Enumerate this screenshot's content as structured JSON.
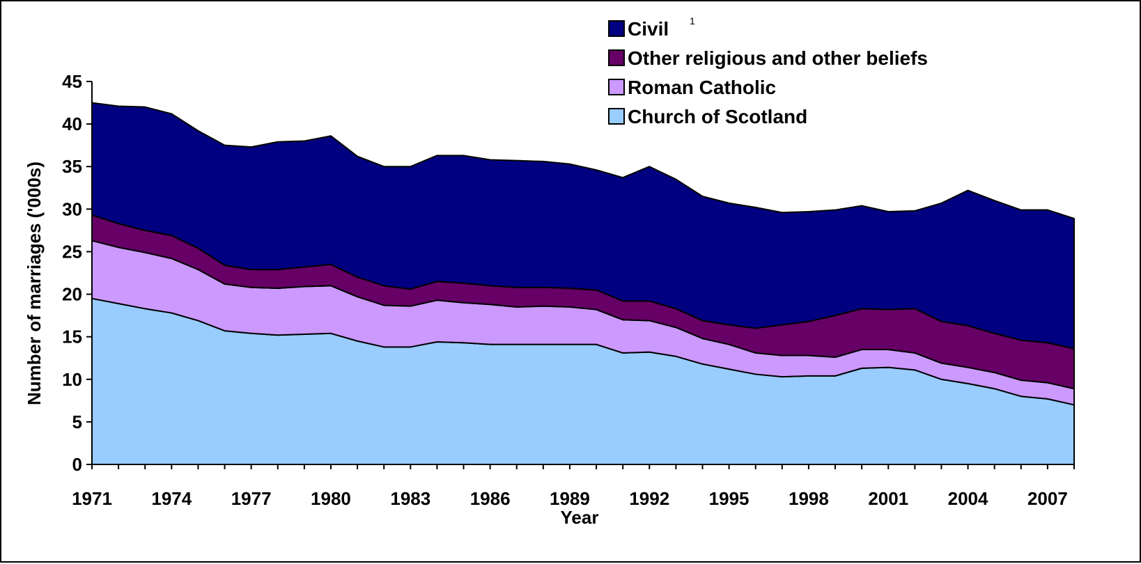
{
  "chart_data": {
    "type": "area",
    "stacked": true,
    "xlabel": "Year",
    "ylabel": "Number of marriages ('000s)",
    "ylim": [
      0,
      45
    ],
    "yticks": [
      0,
      5,
      10,
      15,
      20,
      25,
      30,
      35,
      40,
      45
    ],
    "xlim": [
      1971,
      2008
    ],
    "xtick_labels": [
      1971,
      1974,
      1977,
      1980,
      1983,
      1986,
      1989,
      1992,
      1995,
      1998,
      2001,
      2004,
      2007
    ],
    "legend_position": "top",
    "grid": false,
    "x": [
      1971,
      1972,
      1973,
      1974,
      1975,
      1976,
      1977,
      1978,
      1979,
      1980,
      1981,
      1982,
      1983,
      1984,
      1985,
      1986,
      1987,
      1988,
      1989,
      1990,
      1991,
      1992,
      1993,
      1994,
      1995,
      1996,
      1997,
      1998,
      1999,
      2000,
      2001,
      2002,
      2003,
      2004,
      2005,
      2006,
      2007,
      2008
    ],
    "series": [
      {
        "name": "Church of Scotland",
        "color": "#99ccff",
        "values": [
          19.5,
          18.9,
          18.3,
          17.8,
          16.9,
          15.7,
          15.4,
          15.2,
          15.3,
          15.4,
          14.5,
          13.8,
          13.8,
          14.4,
          14.3,
          14.1,
          14.1,
          14.1,
          14.1,
          14.1,
          13.1,
          13.2,
          12.7,
          11.8,
          11.2,
          10.6,
          10.3,
          10.4,
          10.4,
          11.3,
          11.4,
          11.1,
          10.0,
          9.5,
          8.9,
          8.0,
          7.7,
          7.0
        ]
      },
      {
        "name": "Roman Catholic",
        "color": "#cc99ff",
        "values": [
          6.8,
          6.6,
          6.6,
          6.4,
          6.0,
          5.5,
          5.4,
          5.5,
          5.6,
          5.6,
          5.2,
          4.9,
          4.8,
          4.9,
          4.7,
          4.7,
          4.4,
          4.5,
          4.4,
          4.1,
          3.9,
          3.7,
          3.4,
          3.0,
          2.9,
          2.5,
          2.5,
          2.4,
          2.2,
          2.2,
          2.1,
          2.0,
          1.9,
          1.9,
          1.9,
          1.9,
          1.9,
          1.9
        ]
      },
      {
        "name": "Other religious and other beliefs",
        "color": "#660066",
        "values": [
          3.0,
          2.8,
          2.6,
          2.7,
          2.5,
          2.2,
          2.1,
          2.2,
          2.3,
          2.5,
          2.3,
          2.3,
          2.0,
          2.2,
          2.3,
          2.2,
          2.3,
          2.2,
          2.2,
          2.3,
          2.2,
          2.3,
          2.2,
          2.1,
          2.3,
          2.9,
          3.6,
          4.0,
          4.9,
          4.8,
          4.7,
          5.2,
          4.9,
          4.9,
          4.6,
          4.7,
          4.7,
          4.7
        ]
      },
      {
        "name": "Civil",
        "color": "#000080",
        "values": [
          13.2,
          13.8,
          14.5,
          14.3,
          13.8,
          14.1,
          14.4,
          15.0,
          14.8,
          15.1,
          14.2,
          14.0,
          14.4,
          14.8,
          15.0,
          14.8,
          14.9,
          14.8,
          14.6,
          14.1,
          14.5,
          15.8,
          15.2,
          14.6,
          14.3,
          14.2,
          13.2,
          12.9,
          12.4,
          12.1,
          11.5,
          11.5,
          13.9,
          15.9,
          15.6,
          15.3,
          15.6,
          15.3
        ]
      }
    ],
    "legend": [
      {
        "label": "Civil",
        "superscript": "1",
        "color": "#000080"
      },
      {
        "label": "Other religious and other beliefs",
        "color": "#660066"
      },
      {
        "label": "Roman Catholic",
        "color": "#cc99ff"
      },
      {
        "label": "Church of Scotland",
        "color": "#99ccff"
      }
    ]
  }
}
